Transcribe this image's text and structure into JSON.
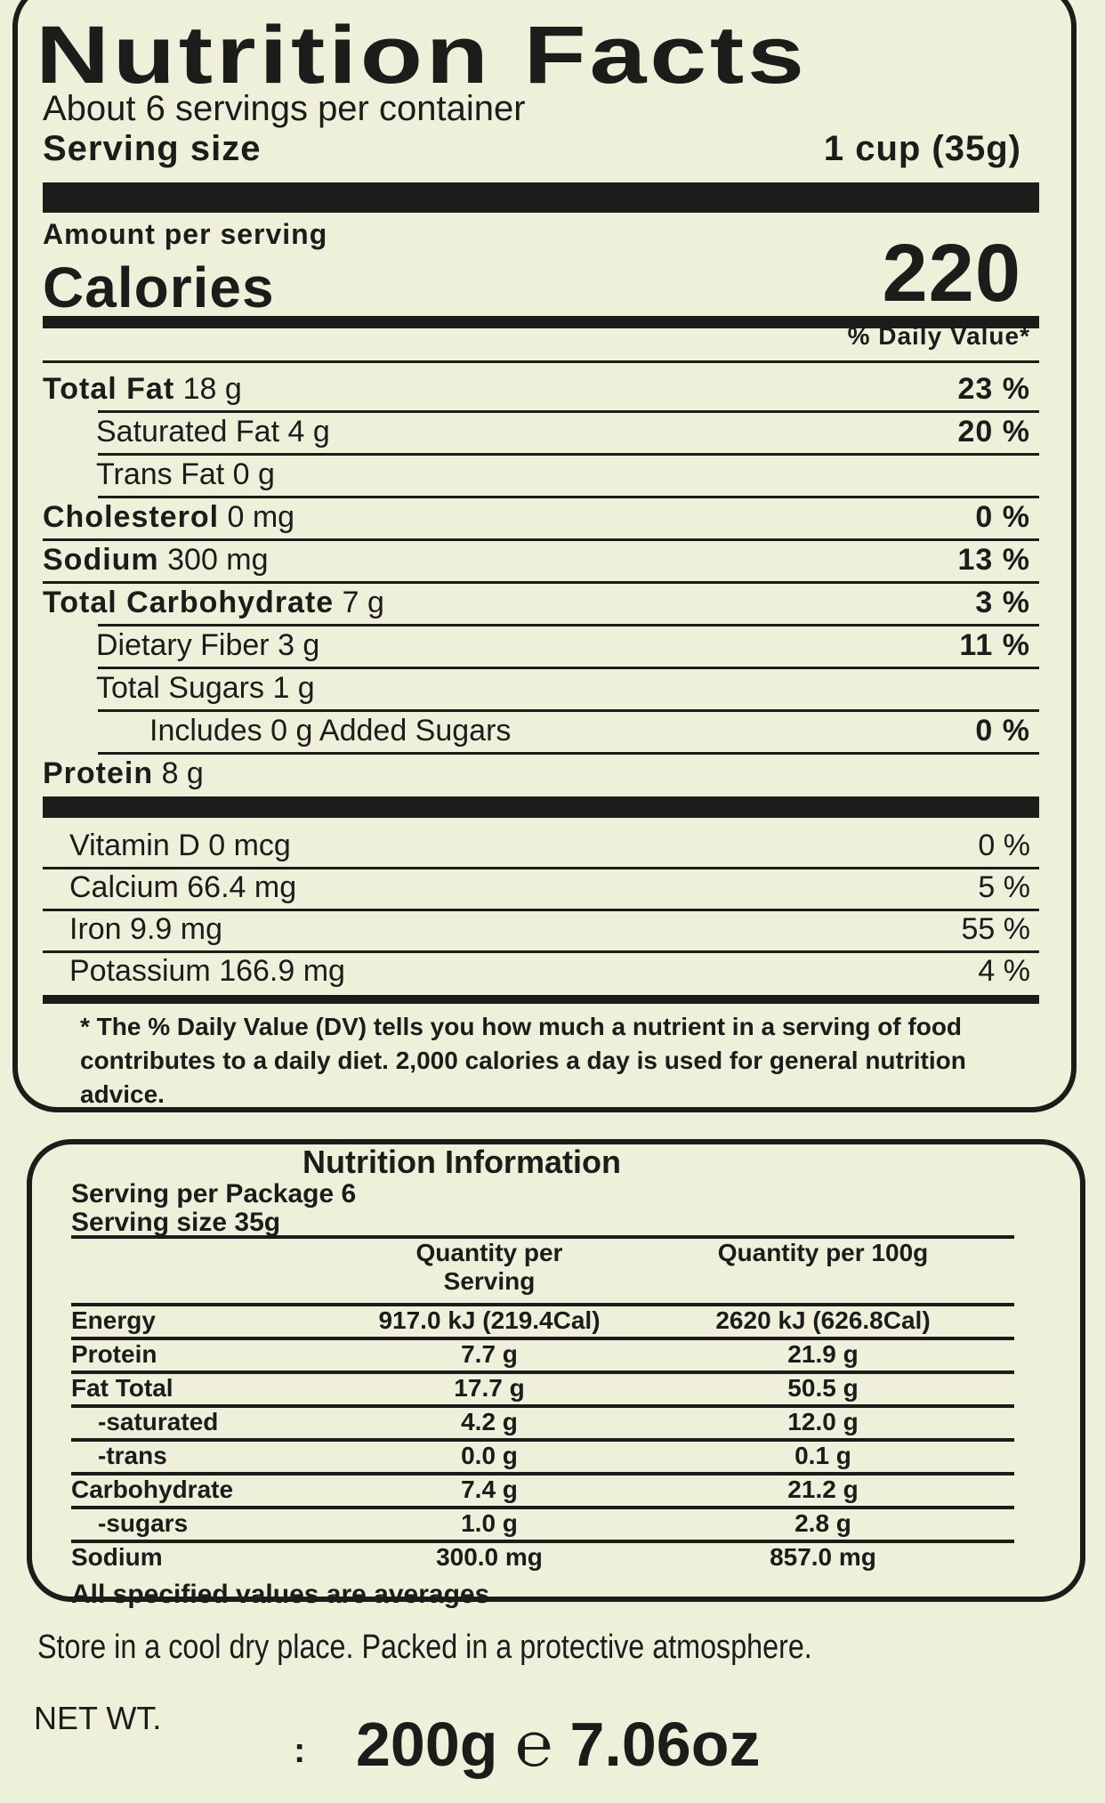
{
  "facts": {
    "title": "Nutrition Facts",
    "servings": "About 6 servings per container",
    "serving_size_label": "Serving size",
    "serving_size_value": "1 cup (35g)",
    "amount_per_serving": "Amount per serving",
    "calories_label": "Calories",
    "calories_value": "220",
    "dv_header": "% Daily Value*",
    "nutrients": [
      {
        "label": "Total Fat",
        "amount": "18 g",
        "dv": "23 %",
        "bold": true,
        "indent": 0
      },
      {
        "label": "Saturated Fat",
        "amount": "4 g",
        "dv": "20 %",
        "bold": false,
        "indent": 1
      },
      {
        "label": "Trans Fat",
        "amount": "0 g",
        "dv": "",
        "bold": false,
        "indent": 1
      },
      {
        "label": "Cholesterol",
        "amount": "0 mg",
        "dv": "0 %",
        "bold": true,
        "indent": 0
      },
      {
        "label": "Sodium",
        "amount": "300 mg",
        "dv": "13 %",
        "bold": true,
        "indent": 0
      },
      {
        "label": "Total Carbohydrate",
        "amount": "7 g",
        "dv": "3 %",
        "bold": true,
        "indent": 0
      },
      {
        "label": "Dietary Fiber",
        "amount": "3 g",
        "dv": "11 %",
        "bold": false,
        "indent": 1
      },
      {
        "label": "Total Sugars",
        "amount": "1 g",
        "dv": "",
        "bold": false,
        "indent": 1
      },
      {
        "label": "Includes 0 g Added Sugars",
        "amount": "",
        "dv": "0 %",
        "bold": false,
        "indent": 2
      },
      {
        "label": "Protein",
        "amount": "8 g",
        "dv": "",
        "bold": true,
        "indent": 0
      }
    ],
    "vitamins": [
      {
        "label": "Vitamin D",
        "amount": "0 mcg",
        "dv": "0 %"
      },
      {
        "label": "Calcium",
        "amount": "66.4 mg",
        "dv": "5 %"
      },
      {
        "label": "Iron",
        "amount": "9.9 mg",
        "dv": "55 %"
      },
      {
        "label": "Potassium",
        "amount": "166.9 mg",
        "dv": "4 %"
      }
    ],
    "footnote": "* The % Daily Value (DV) tells you how much a nutrient in a serving of food contributes to a daily diet. 2,000 calories a day is used for general nutrition advice."
  },
  "info": {
    "title": "Nutrition Information",
    "servings_per_package": "Serving per Package 6",
    "serving_size": "Serving size 35g",
    "col_serving": "Quantity per Serving",
    "col_100g": "Quantity per 100g",
    "rows": [
      [
        "Energy",
        "917.0 kJ (219.4Cal)",
        "2620 kJ (626.8Cal)"
      ],
      [
        "Protein",
        "7.7 g",
        "21.9 g"
      ],
      [
        "Fat Total",
        "17.7 g",
        "50.5 g"
      ],
      [
        "-saturated",
        "4.2 g",
        "12.0 g"
      ],
      [
        "-trans",
        "0.0 g",
        "0.1 g"
      ],
      [
        "Carbohydrate",
        "7.4 g",
        "21.2 g"
      ],
      [
        "-sugars",
        "1.0 g",
        "2.8 g"
      ],
      [
        "Sodium",
        "300.0 mg",
        "857.0 mg"
      ]
    ],
    "averages": "All specified values are averages"
  },
  "storage": "Store in a cool dry place. Packed in a protective atmosphere.",
  "net_wt_label": "NET WT.",
  "net_wt_sep": ":",
  "net_wt_value": "200g ℮ 7.06oz"
}
